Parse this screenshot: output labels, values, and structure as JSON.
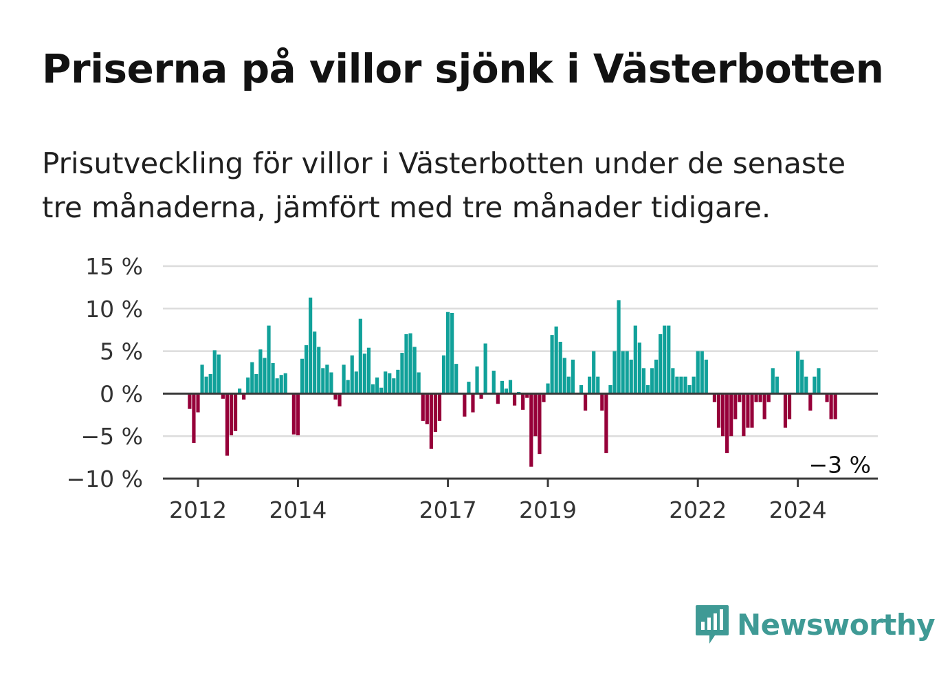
{
  "header": {
    "title": "Priserna på villor sjönk i Västerbotten",
    "subtitle": "Prisutveckling för villor i Västerbotten under de senaste tre månaderna, jämfört med tre månader tidigare."
  },
  "brand": {
    "name": "Newsworthy",
    "color": "#3f9a95"
  },
  "colors": {
    "positive": "#11a19a",
    "negative": "#960039",
    "grid": "#dcdcdc",
    "axis": "#3a3a3a"
  },
  "chart_data": {
    "type": "bar",
    "title": "Priserna på villor sjönk i Västerbotten",
    "xlabel": "",
    "ylabel": "",
    "ylim": [
      -10,
      15
    ],
    "yticks": [
      -10,
      -5,
      0,
      5,
      10,
      15
    ],
    "ytick_labels": [
      "−10 %",
      "−5 %",
      "0 %",
      "5 %",
      "10 %",
      "15 %"
    ],
    "xtick_labels": [
      {
        "label": "2012",
        "date": "2012-01"
      },
      {
        "label": "2014",
        "date": "2014-01"
      },
      {
        "label": "2017",
        "date": "2017-01"
      },
      {
        "label": "2019",
        "date": "2019-01"
      },
      {
        "label": "2022",
        "date": "2022-01"
      },
      {
        "label": "2024",
        "date": "2024-01"
      }
    ],
    "grid": true,
    "end_label": "−3 %",
    "series": [
      {
        "dates": [
          "2011-11",
          "2011-12",
          "2012-01",
          "2012-02",
          "2012-03",
          "2012-04",
          "2012-05",
          "2012-06",
          "2012-07",
          "2012-08",
          "2012-09",
          "2012-10",
          "2012-11",
          "2012-12",
          "2013-01",
          "2013-02",
          "2013-03",
          "2013-04",
          "2013-05",
          "2013-06",
          "2013-07",
          "2013-08",
          "2013-09",
          "2013-10",
          "2013-11",
          "2013-12",
          "2014-01",
          "2014-02",
          "2014-03",
          "2014-04",
          "2014-05",
          "2014-06",
          "2014-07",
          "2014-08",
          "2014-09",
          "2014-10",
          "2014-11",
          "2014-12",
          "2015-01",
          "2015-02",
          "2015-03",
          "2015-04",
          "2015-05",
          "2015-06",
          "2015-07",
          "2015-08",
          "2015-09",
          "2015-10",
          "2015-11",
          "2015-12",
          "2016-01",
          "2016-02",
          "2016-03",
          "2016-04",
          "2016-05",
          "2016-06",
          "2016-07",
          "2016-08",
          "2016-09",
          "2016-10",
          "2016-11",
          "2016-12",
          "2017-01",
          "2017-02",
          "2017-03",
          "2017-04",
          "2017-05",
          "2017-06",
          "2017-07",
          "2017-08",
          "2017-09",
          "2017-10",
          "2017-11",
          "2017-12",
          "2018-01",
          "2018-02",
          "2018-03",
          "2018-04",
          "2018-05",
          "2018-06",
          "2018-07",
          "2018-08",
          "2018-09",
          "2018-10",
          "2018-11",
          "2018-12",
          "2019-01",
          "2019-02",
          "2019-03",
          "2019-04",
          "2019-05",
          "2019-06",
          "2019-07",
          "2019-08",
          "2019-09",
          "2019-10",
          "2019-11",
          "2019-12",
          "2020-01",
          "2020-02",
          "2020-03",
          "2020-04",
          "2020-05",
          "2020-06",
          "2020-07",
          "2020-08",
          "2020-09",
          "2020-10",
          "2020-11",
          "2020-12",
          "2021-01",
          "2021-02",
          "2021-03",
          "2021-04",
          "2021-05",
          "2021-06",
          "2021-07",
          "2021-08",
          "2021-09",
          "2021-10",
          "2021-11",
          "2021-12",
          "2022-01",
          "2022-02",
          "2022-03",
          "2022-04",
          "2022-05",
          "2022-06",
          "2022-07",
          "2022-08",
          "2022-09",
          "2022-10",
          "2022-11",
          "2022-12",
          "2023-01",
          "2023-02",
          "2023-03",
          "2023-04",
          "2023-05",
          "2023-06",
          "2023-07",
          "2023-08",
          "2023-09",
          "2023-10",
          "2023-11",
          "2023-12",
          "2024-01",
          "2024-02",
          "2024-03",
          "2024-04",
          "2024-05",
          "2024-06",
          "2024-07",
          "2024-08",
          "2024-09",
          "2024-10"
        ],
        "values": [
          -1.8,
          -5.8,
          -2.2,
          3.4,
          2.0,
          2.3,
          5.1,
          4.6,
          -0.6,
          -7.3,
          -4.9,
          -4.4,
          0.6,
          -0.7,
          1.9,
          3.7,
          2.3,
          5.2,
          4.2,
          8.0,
          3.6,
          1.8,
          2.2,
          2.4,
          0.0,
          -4.8,
          -4.9,
          4.1,
          5.7,
          11.3,
          7.3,
          5.5,
          3.0,
          3.4,
          2.5,
          -0.7,
          -1.5,
          3.4,
          1.6,
          4.5,
          2.6,
          8.8,
          4.7,
          5.4,
          1.1,
          1.9,
          0.7,
          2.6,
          2.4,
          1.8,
          2.8,
          4.8,
          7.0,
          7.1,
          5.5,
          2.5,
          -3.2,
          -3.6,
          -6.5,
          -4.5,
          -3.2,
          4.5,
          9.6,
          9.5,
          3.5,
          0.0,
          -2.7,
          1.4,
          -2.2,
          3.2,
          -0.6,
          5.9,
          0.0,
          2.7,
          -1.2,
          1.5,
          0.6,
          1.6,
          -1.4,
          0.2,
          -1.9,
          -0.5,
          -8.6,
          -5.0,
          -7.1,
          -1.0,
          1.2,
          6.9,
          7.9,
          6.1,
          4.2,
          2.0,
          4.0,
          0.0,
          1.0,
          -2.0,
          2.0,
          5.0,
          2.0,
          -2.0,
          -7.0,
          1.0,
          5.0,
          11.0,
          5.0,
          5.0,
          4.0,
          8.0,
          6.0,
          3.0,
          1.0,
          3.0,
          4.0,
          7.0,
          8.0,
          8.0,
          3.0,
          2.0,
          2.0,
          2.0,
          1.0,
          2.0,
          5.0,
          5.0,
          4.0,
          0.0,
          -1.0,
          -4.0,
          -5.0,
          -7.0,
          -5.0,
          -3.0,
          -1.0,
          -5.0,
          -4.0,
          -4.0,
          -1.0,
          -1.0,
          -3.0,
          -1.0,
          3.0,
          2.0,
          0.0,
          -4.0,
          -3.0,
          0.0,
          5.0,
          4.0,
          2.0,
          -2.0,
          2.0,
          3.0,
          0.0,
          -1.0,
          -3.0,
          -3.0
        ]
      }
    ]
  }
}
